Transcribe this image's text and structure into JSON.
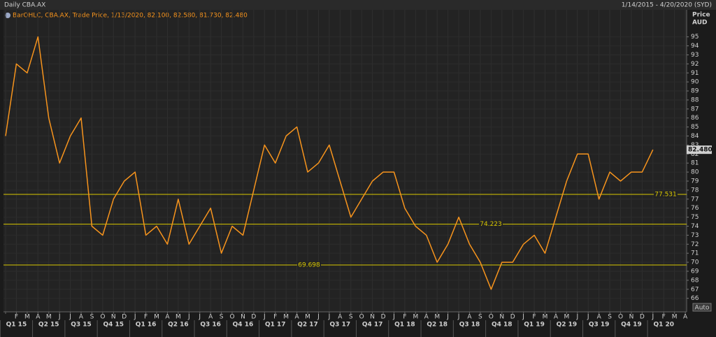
{
  "chart_data": {
    "type": "line",
    "title": "Daily CBA.AX",
    "date_range": "1/14/2015 - 4/20/2020 (SYD)",
    "legend_text": "BarOHLC, CBA.AX, Trade Price, 1/13/2020, 82.100, 82.580, 81.730, 82.480",
    "y_axis_label": "Price",
    "y_axis_unit": "AUD",
    "scale_mode": "Auto",
    "categories": [
      null,
      "F",
      "M",
      "A",
      "M",
      "J",
      "J",
      "A",
      "S",
      "O",
      "N",
      "D",
      "J",
      "F",
      "M",
      "A",
      "M",
      "J",
      "J",
      "A",
      "S",
      "O",
      "N",
      "D",
      "J",
      "F",
      "M",
      "A",
      "M",
      "J",
      "J",
      "A",
      "S",
      "O",
      "N",
      "D",
      "J",
      "F",
      "M",
      "A",
      "M",
      "J",
      "J",
      "A",
      "S",
      "O",
      "N",
      "D",
      "J",
      "F",
      "M",
      "A",
      "M",
      "J",
      "J",
      "A",
      "S",
      "O",
      "N",
      "D",
      "J",
      "F",
      "M",
      "A"
    ],
    "quarters": [
      "Q1 15",
      "Q2 15",
      "Q3 15",
      "Q4 15",
      "Q1 16",
      "Q2 16",
      "Q3 16",
      "Q4 16",
      "Q1 17",
      "Q2 17",
      "Q3 17",
      "Q4 17",
      "Q1 18",
      "Q2 18",
      "Q3 18",
      "Q4 18",
      "Q1 19",
      "Q2 19",
      "Q3 19",
      "Q4 19",
      "Q1 20"
    ],
    "series": [
      {
        "name": "CBA.AX",
        "color": "#f7941d",
        "values": [
          84,
          92,
          91,
          95,
          86,
          81,
          84,
          86,
          74,
          73,
          77,
          79,
          80,
          73,
          74,
          72,
          77,
          72,
          74,
          76,
          71,
          74,
          73,
          78,
          83,
          81,
          84,
          85,
          80,
          81,
          83,
          79,
          75,
          77,
          79,
          80,
          80,
          76,
          74,
          73,
          70,
          72,
          75,
          72,
          70,
          67,
          70,
          70,
          72,
          73,
          71,
          75,
          79,
          82,
          82,
          77,
          80,
          79,
          80,
          80,
          82.48,
          null,
          null,
          null
        ]
      }
    ],
    "last_price": {
      "value": 82.48,
      "label": "82.480"
    },
    "hlines": [
      77.531,
      74.223,
      69.698
    ],
    "hline_color": "#d9c800",
    "ylim": [
      64.5,
      98
    ],
    "yticks": [
      66,
      67,
      68,
      69,
      70,
      71,
      72,
      73,
      74,
      75,
      76,
      77,
      78,
      79,
      80,
      81,
      82,
      83,
      84,
      85,
      86,
      87,
      88,
      89,
      90,
      91,
      92,
      93,
      94,
      95
    ],
    "grid": true
  }
}
